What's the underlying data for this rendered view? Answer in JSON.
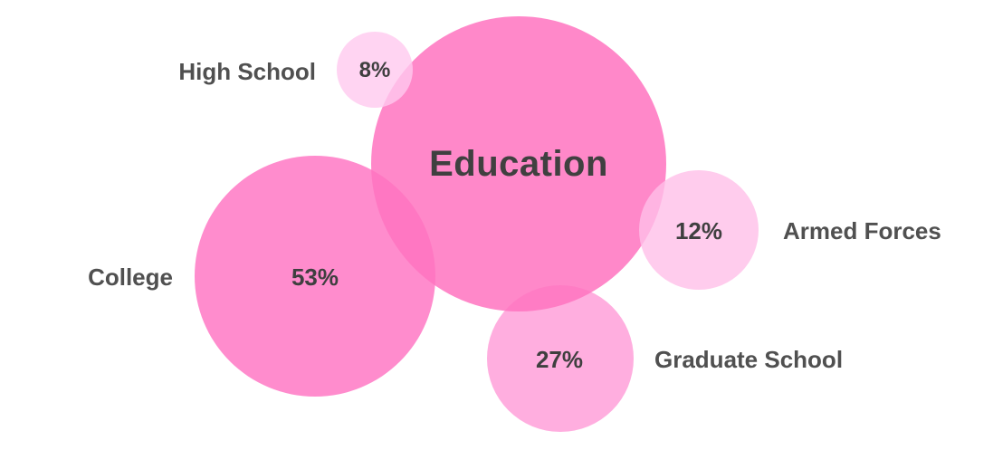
{
  "center": {
    "label": "Education",
    "color": "#ff73bf"
  },
  "segments": [
    {
      "key": "high_school",
      "label": "High School",
      "value": "8%",
      "color": "#ffc9ef"
    },
    {
      "key": "armed_forces",
      "label": "Armed Forces",
      "value": "12%",
      "color": "#ffbfe8"
    },
    {
      "key": "college",
      "label": "College",
      "value": "53%",
      "color": "#ff78c4"
    },
    {
      "key": "graduate_school",
      "label": "Graduate School",
      "value": "27%",
      "color": "#ffa0d9"
    }
  ]
}
